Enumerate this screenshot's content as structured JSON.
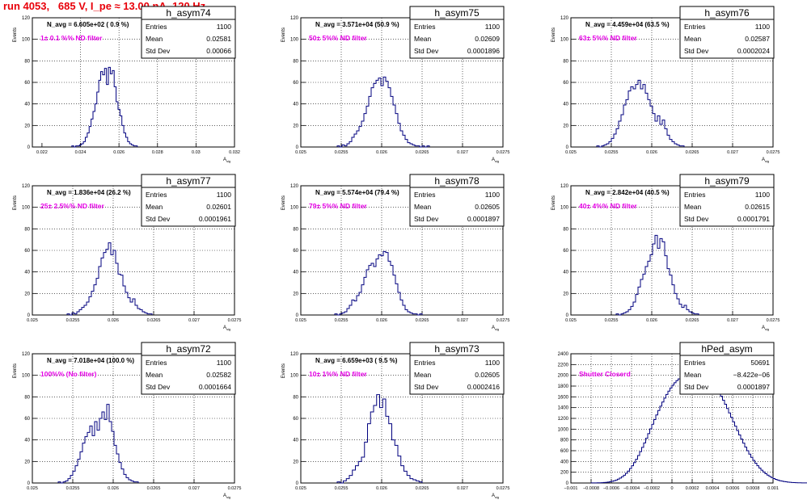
{
  "page_title": "run 4053,   685 V, I_pe ≈ 13.00 nA, 120 Hz",
  "stat_labels": {
    "entries": "Entries",
    "mean": "Mean",
    "stddev": "Std Dev"
  },
  "colors": {
    "hist": "#00007f",
    "annotation": "#e600e6",
    "title": "#e8000a",
    "nav": "#000000"
  },
  "chart_data": [
    {
      "type": "bar",
      "name": "h_asym74",
      "ylabel": "Events",
      "xlabel": "A_{sig}",
      "navg": "N_avg = 6.605e+02 ( 0.9 %)",
      "note": "1± 0.1 %% ND filter",
      "stats": {
        "entries": "1100",
        "mean": "0.02581",
        "stddev": "0.00066"
      },
      "xlim": [
        0.0215,
        0.032
      ],
      "ylim": [
        0,
        120
      ],
      "xticks": [
        0.022,
        0.024,
        0.026,
        0.028,
        0.03,
        0.032
      ],
      "xticklabels": [
        "0.022",
        "0.024",
        "0.026",
        "0.028",
        "0.03",
        "0.032"
      ],
      "yticks": [
        0,
        20,
        40,
        60,
        80,
        100,
        120
      ],
      "bin_start": 0.02355,
      "bin_width": 0.0001,
      "values": [
        1,
        0,
        1,
        1,
        2,
        3,
        5,
        9,
        13,
        19,
        26,
        33,
        40,
        51,
        62,
        70,
        67,
        73,
        58,
        74,
        68,
        71,
        56,
        42,
        35,
        29,
        20,
        13,
        9,
        5,
        3,
        2,
        1,
        1
      ]
    },
    {
      "type": "bar",
      "name": "h_asym75",
      "ylabel": "Events",
      "xlabel": "A_{sig}",
      "navg": "N_avg = 3.571e+04 (50.9 %)",
      "note": "50± 5%% ND filter",
      "stats": {
        "entries": "1100",
        "mean": "0.02609",
        "stddev": "0.0001896"
      },
      "xlim": [
        0.025,
        0.0275
      ],
      "ylim": [
        0,
        120
      ],
      "xticks": [
        0.025,
        0.0255,
        0.026,
        0.0265,
        0.027,
        0.0275
      ],
      "xticklabels": [
        "0.025",
        "0.0255",
        "0.026",
        "0.0265",
        "0.027",
        "0.0275"
      ],
      "yticks": [
        0,
        20,
        40,
        60,
        80,
        100,
        120
      ],
      "bin_start": 0.02545,
      "bin_width": 3e-05,
      "values": [
        1,
        0,
        2,
        1,
        3,
        5,
        9,
        12,
        15,
        19,
        24,
        31,
        38,
        47,
        55,
        59,
        62,
        64,
        57,
        65,
        61,
        55,
        47,
        39,
        31,
        22,
        15,
        11,
        7,
        4,
        3,
        2,
        1,
        1,
        0,
        1,
        0,
        1
      ]
    },
    {
      "type": "bar",
      "name": "h_asym76",
      "ylabel": "Events",
      "xlabel": "A_{sig}",
      "navg": "N_avg = 4.459e+04 (63.5 %)",
      "note": "63± 5%% ND filter",
      "stats": {
        "entries": "1100",
        "mean": "0.02587",
        "stddev": "0.0002024"
      },
      "xlim": [
        0.025,
        0.0275
      ],
      "ylim": [
        0,
        120
      ],
      "xticks": [
        0.025,
        0.0255,
        0.026,
        0.0265,
        0.027,
        0.0275
      ],
      "xticklabels": [
        "0.025",
        "0.0255",
        "0.026",
        "0.0265",
        "0.027",
        "0.0275"
      ],
      "yticks": [
        0,
        20,
        40,
        60,
        80,
        100,
        120
      ],
      "bin_start": 0.02532,
      "bin_width": 3e-05,
      "values": [
        1,
        0,
        1,
        2,
        3,
        5,
        8,
        12,
        17,
        24,
        30,
        39,
        44,
        52,
        56,
        54,
        58,
        62,
        54,
        58,
        50,
        44,
        38,
        31,
        24,
        29,
        21,
        25,
        17,
        11,
        7,
        5,
        3,
        2,
        1,
        1
      ]
    },
    {
      "type": "bar",
      "name": "h_asym77",
      "ylabel": "Events",
      "xlabel": "A_{sig}",
      "navg": "N_avg = 1.836e+04 (26.2 %)",
      "note": "25± 2.5%% ND filter",
      "stats": {
        "entries": "1100",
        "mean": "0.02601",
        "stddev": "0.0001961"
      },
      "xlim": [
        0.025,
        0.0275
      ],
      "ylim": [
        0,
        120
      ],
      "xticks": [
        0.025,
        0.0255,
        0.026,
        0.0265,
        0.027,
        0.0275
      ],
      "xticklabels": [
        "0.025",
        "0.0255",
        "0.026",
        "0.0265",
        "0.027",
        "0.0275"
      ],
      "yticks": [
        0,
        20,
        40,
        60,
        80,
        100,
        120
      ],
      "bin_start": 0.02543,
      "bin_width": 3e-05,
      "values": [
        1,
        0,
        2,
        1,
        3,
        5,
        7,
        9,
        12,
        17,
        22,
        28,
        34,
        45,
        53,
        58,
        61,
        67,
        56,
        60,
        48,
        38,
        37,
        27,
        21,
        16,
        12,
        15,
        9,
        6,
        5,
        3,
        2,
        1,
        1
      ]
    },
    {
      "type": "bar",
      "name": "h_asym78",
      "ylabel": "Events",
      "xlabel": "A_{sig}",
      "navg": "N_avg = 5.574e+04 (79.4 %)",
      "note": "79± 5%% ND filter",
      "stats": {
        "entries": "1100",
        "mean": "0.02605",
        "stddev": "0.0001897"
      },
      "xlim": [
        0.025,
        0.0275
      ],
      "ylim": [
        0,
        120
      ],
      "xticks": [
        0.025,
        0.0255,
        0.026,
        0.0265,
        0.027,
        0.0275
      ],
      "xticklabels": [
        "0.025",
        "0.0255",
        "0.026",
        "0.0265",
        "0.027",
        "0.0275"
      ],
      "yticks": [
        0,
        20,
        40,
        60,
        80,
        100,
        120
      ],
      "bin_start": 0.02542,
      "bin_width": 3e-05,
      "values": [
        1,
        0,
        1,
        2,
        3,
        6,
        9,
        14,
        13,
        18,
        21,
        28,
        35,
        42,
        46,
        48,
        45,
        52,
        56,
        55,
        59,
        58,
        50,
        46,
        37,
        29,
        21,
        14,
        9,
        5,
        3,
        2,
        1,
        1,
        0,
        1
      ]
    },
    {
      "type": "bar",
      "name": "h_asym79",
      "ylabel": "Events",
      "xlabel": "A_{sig}",
      "navg": "N_avg = 2.842e+04 (40.5 %)",
      "note": "40± 4%% ND filter",
      "stats": {
        "entries": "1100",
        "mean": "0.02615",
        "stddev": "0.0001791"
      },
      "xlim": [
        0.025,
        0.0275
      ],
      "ylim": [
        0,
        120
      ],
      "xticks": [
        0.025,
        0.0255,
        0.026,
        0.0265,
        0.027,
        0.0275
      ],
      "xticklabels": [
        "0.025",
        "0.0255",
        "0.026",
        "0.0265",
        "0.027",
        "0.0275"
      ],
      "yticks": [
        0,
        20,
        40,
        60,
        80,
        100,
        120
      ],
      "bin_start": 0.02556,
      "bin_width": 3e-05,
      "values": [
        1,
        0,
        1,
        2,
        3,
        5,
        8,
        12,
        19,
        26,
        33,
        38,
        45,
        50,
        56,
        66,
        74,
        62,
        71,
        68,
        55,
        43,
        37,
        28,
        20,
        15,
        10,
        7,
        9,
        5,
        3,
        2,
        1,
        1
      ]
    },
    {
      "type": "bar",
      "name": "h_asym72",
      "ylabel": "Events",
      "xlabel": "A_{sig}",
      "navg": "N_avg = 7.018e+04 (100.0 %)",
      "note": "100%% (No filter)",
      "stats": {
        "entries": "1100",
        "mean": "0.02582",
        "stddev": "0.0001664"
      },
      "xlim": [
        0.025,
        0.0275
      ],
      "ylim": [
        0,
        120
      ],
      "xticks": [
        0.025,
        0.0255,
        0.026,
        0.0265,
        0.027,
        0.0275
      ],
      "xticklabels": [
        "0.025",
        "0.0255",
        "0.026",
        "0.0265",
        "0.027",
        "0.0275"
      ],
      "yticks": [
        0,
        20,
        40,
        60,
        80,
        100,
        120
      ],
      "bin_start": 0.02532,
      "bin_width": 3e-05,
      "values": [
        1,
        0,
        1,
        2,
        4,
        7,
        11,
        16,
        22,
        29,
        37,
        43,
        47,
        53,
        44,
        57,
        49,
        60,
        66,
        59,
        73,
        57,
        48,
        35,
        27,
        19,
        13,
        8,
        5,
        3,
        2,
        1,
        1
      ]
    },
    {
      "type": "bar",
      "name": "h_asym73",
      "ylabel": "Events",
      "xlabel": "A_{sig}",
      "navg": "N_avg = 6.659e+03 ( 9.5 %)",
      "note": "10± 1%% ND filter",
      "stats": {
        "entries": "1100",
        "mean": "0.02605",
        "stddev": "0.0002416"
      },
      "xlim": [
        0.025,
        0.0275
      ],
      "ylim": [
        0,
        120
      ],
      "xticks": [
        0.025,
        0.0255,
        0.026,
        0.0265,
        0.027,
        0.0275
      ],
      "xticklabels": [
        "0.025",
        "0.0255",
        "0.026",
        "0.0265",
        "0.027",
        "0.0275"
      ],
      "yticks": [
        0,
        20,
        40,
        60,
        80,
        100,
        120
      ],
      "bin_start": 0.02545,
      "bin_width": 3.75e-05,
      "values": [
        1,
        0,
        2,
        4,
        7,
        12,
        16,
        20,
        24,
        38,
        55,
        66,
        72,
        82,
        70,
        78,
        62,
        55,
        40,
        35,
        25,
        16,
        11,
        7,
        4,
        3,
        2,
        1
      ]
    },
    {
      "type": "bar",
      "name": "hPed_asym",
      "ylabel": "",
      "xlabel": "",
      "navg": "",
      "note": "Shutter Closerd",
      "stats": {
        "entries": "50691",
        "mean": "−8.422e−06",
        "stddev": "0.0001897"
      },
      "xlim": [
        -0.001,
        0.001
      ],
      "ylim": [
        0,
        2400
      ],
      "xticks": [
        -0.001,
        -0.0008,
        -0.0006,
        -0.0004,
        -0.0002,
        0,
        0.0002,
        0.0004,
        0.0006,
        0.0008,
        0.001
      ],
      "xticklabels": [
        "−0.001",
        "−0.0008",
        "−0.0006",
        "−0.0004",
        "−0.0002",
        "0",
        "0.0002",
        "0.0004",
        "0.0006",
        "0.0008",
        "0.001"
      ],
      "yticks": [
        0,
        200,
        400,
        600,
        800,
        1000,
        1200,
        1400,
        1600,
        1800,
        2000,
        2200,
        2400
      ],
      "bin_start": -0.0008,
      "bin_width": 2e-05,
      "values": [
        1,
        1,
        2,
        3,
        4,
        6,
        9,
        12,
        17,
        23,
        31,
        41,
        55,
        71,
        91,
        116,
        145,
        180,
        221,
        268,
        320,
        378,
        441,
        510,
        584,
        662,
        744,
        830,
        917,
        1005,
        1091,
        1178,
        1263,
        1346,
        1426,
        1503,
        1576,
        1644,
        1707,
        1765,
        1816,
        1862,
        1901,
        1934,
        1961,
        1985,
        2010,
        2040,
        2065,
        2085,
        2095,
        2105,
        2110,
        2095,
        2075,
        2055,
        2030,
        1995,
        1955,
        1910,
        1860,
        1805,
        1745,
        1680,
        1610,
        1538,
        1462,
        1383,
        1302,
        1220,
        1137,
        1055,
        973,
        893,
        815,
        740,
        668,
        600,
        536,
        476,
        420,
        368,
        321,
        278,
        239,
        204,
        173,
        146,
        122,
        101,
        83,
        68,
        55,
        44,
        35,
        28,
        22,
        17,
        13,
        10,
        8,
        6,
        4,
        3,
        2,
        2,
        1,
        1
      ]
    }
  ]
}
